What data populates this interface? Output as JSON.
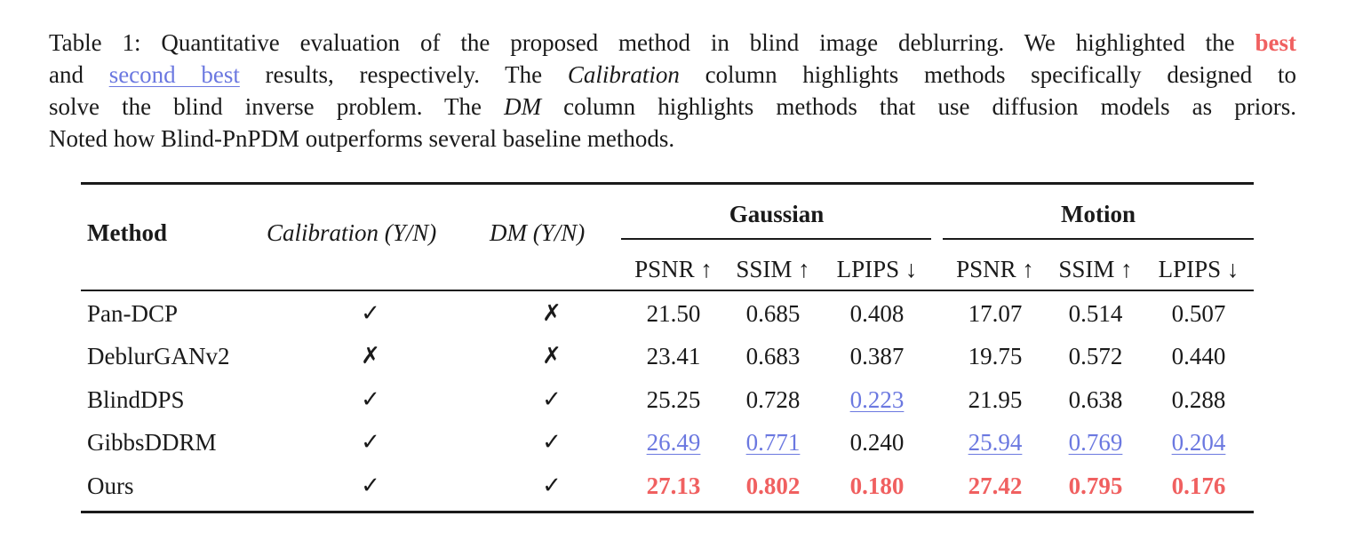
{
  "caption": {
    "line1_a": "Table 1: Quantitative evaluation of the proposed method in blind image deblurring. We highlighted the ",
    "best_word": "best",
    "line2_a": "and ",
    "second_best_words": "second best",
    "line2_b": " results, respectively. The ",
    "line2_it": "Calibration",
    "line2_c": " column highlights methods specifically designed to",
    "line3_a": "solve the blind inverse problem. The ",
    "line3_it": "DM",
    "line3_b": " column highlights methods that use diffusion models as priors.",
    "line4": "Noted how Blind-PnPDM outperforms several baseline methods."
  },
  "table": {
    "header": {
      "method": "Method",
      "calibration": "Calibration (Y/N)",
      "dm": "DM (Y/N)",
      "group_gaussian": "Gaussian",
      "group_motion": "Motion",
      "metrics": [
        "PSNR ↑",
        "SSIM ↑",
        "LPIPS ↓",
        "PSNR ↑",
        "SSIM ↑",
        "LPIPS ↓"
      ]
    },
    "rows": [
      {
        "method": "Pan-DCP",
        "calibration": "✓",
        "dm": "✗",
        "values": [
          "21.50",
          "0.685",
          "0.408",
          "17.07",
          "0.514",
          "0.507"
        ],
        "styles": [
          "",
          "",
          "",
          "",
          "",
          ""
        ]
      },
      {
        "method": "DeblurGANv2",
        "calibration": "✗",
        "dm": "✗",
        "values": [
          "23.41",
          "0.683",
          "0.387",
          "19.75",
          "0.572",
          "0.440"
        ],
        "styles": [
          "",
          "",
          "",
          "",
          "",
          ""
        ]
      },
      {
        "method": "BlindDPS",
        "calibration": "✓",
        "dm": "✓",
        "values": [
          "25.25",
          "0.728",
          "0.223",
          "21.95",
          "0.638",
          "0.288"
        ],
        "styles": [
          "",
          "",
          "second",
          "",
          "",
          ""
        ]
      },
      {
        "method": "GibbsDDRM",
        "calibration": "✓",
        "dm": "✓",
        "values": [
          "26.49",
          "0.771",
          "0.240",
          "25.94",
          "0.769",
          "0.204"
        ],
        "styles": [
          "second",
          "second",
          "",
          "second",
          "second",
          "second"
        ]
      },
      {
        "method": "Ours",
        "calibration": "✓",
        "dm": "✓",
        "values": [
          "27.13",
          "0.802",
          "0.180",
          "27.42",
          "0.795",
          "0.176"
        ],
        "styles": [
          "best",
          "best",
          "best",
          "best",
          "best",
          "best"
        ]
      }
    ]
  },
  "colors": {
    "best": "#f06060",
    "second_best": "#6b78e0"
  }
}
